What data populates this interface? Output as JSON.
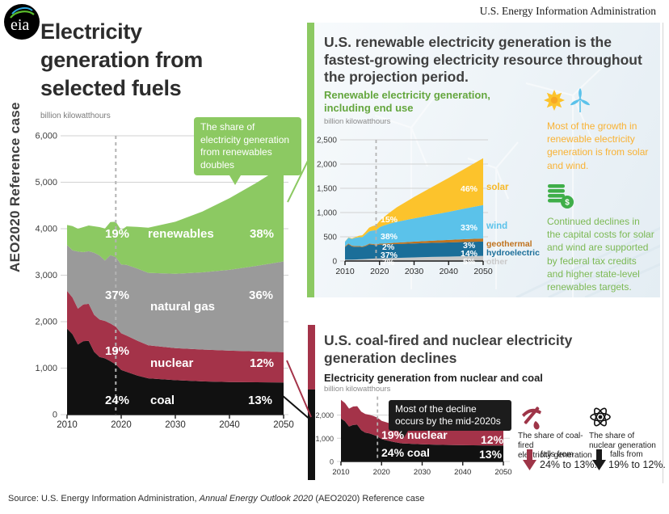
{
  "header": {
    "brand": "U.S. Energy Information Administration",
    "logo_text": "eia",
    "edition_label": "AEO2020 Reference case"
  },
  "main_chart": {
    "title": "Electricity\ngeneration from\nselected fuels",
    "units": "billion kilowatthours",
    "callout": "The share of electricity generation from renewables doubles",
    "labels": {
      "renewables_start": "19%",
      "renewables": "renewables",
      "renewables_end": "38%",
      "gas_start": "37%",
      "gas": "natural gas",
      "gas_end": "36%",
      "nuclear_start": "19%",
      "nuclear": "nuclear",
      "nuclear_end": "12%",
      "coal_start": "24%",
      "coal": "coal",
      "coal_end": "13%"
    }
  },
  "renewables_panel": {
    "title": "U.S. renewable electricity generation is the fastest-growing electricity resource throughout the projection period.",
    "chart_title": "Renewable electricity generation,\nincluding end use",
    "units": "billion kilowatthours",
    "start_labels": {
      "solar": "15%",
      "wind": "38%",
      "geothermal": "2%",
      "hydroelectric": "37%",
      "other": "7%"
    },
    "end_labels": {
      "solar": "46%",
      "wind": "33%",
      "geothermal": "3%",
      "hydroelectric": "14%",
      "other": "5%"
    },
    "legend": {
      "solar": "solar",
      "wind": "wind",
      "geothermal": "geothermal",
      "hydroelectric": "hydroelectric",
      "other": "other"
    },
    "note_growth": "Most of the growth in renewable electricity generation is from solar and wind.",
    "note_costs": "Continued declines in the capital costs for solar and wind are supported by federal tax credits and higher state-level renewables targets."
  },
  "coal_nuclear_panel": {
    "title": "U.S. coal-fired and nuclear electricity generation declines",
    "chart_title": "Electricity generation from nuclear and coal",
    "units": "billion kilowatthours",
    "callout": "Most of the decline occurs by the mid-2020s",
    "labels": {
      "nuclear_start": "19% nuclear",
      "nuclear_end": "12%",
      "coal_start": "24% coal",
      "coal_end": "13%"
    },
    "coal_note": {
      "lines": "The share of coal-fired\nelectricity generation",
      "falls": "falls from",
      "range": "24% to 13%."
    },
    "nuclear_note": {
      "lines": "The share of\nnuclear generation",
      "falls": "falls from",
      "range": "19% to 12%."
    }
  },
  "footer": {
    "prefix": "Source: U.S. Energy Information Administration, ",
    "italic": "Annual Energy Outlook 2020",
    "suffix": " (AEO2020) Reference case"
  },
  "colors": {
    "renewables_green": "#8cc962",
    "natural_gas_gray": "#9a9a9a",
    "nuclear_red": "#a43349",
    "coal_black": "#111111",
    "solar_yellow": "#fcc32c",
    "wind_blue": "#5bc2ea",
    "geothermal_orange": "#c0731f",
    "hydro_blue": "#1b6e99",
    "other_gray": "#c9c9c9"
  },
  "chart_data": [
    {
      "id": "main",
      "type": "area",
      "title": "Electricity generation from selected fuels",
      "ylabel": "billion kilowatthours",
      "x_range": [
        2010,
        2050
      ],
      "ylim": [
        0,
        6000
      ],
      "y_grid": [
        0,
        1000,
        2000,
        3000,
        4000,
        5000,
        6000
      ],
      "y_tick_labels": [
        "0",
        "1,000",
        "2,000",
        "3,000",
        "4,000",
        "5,000",
        "6,000"
      ],
      "x_ticks": [
        2010,
        2020,
        2030,
        2040,
        2050
      ],
      "x_tick_labels": [
        "2010",
        "2020",
        "2030",
        "2040",
        "2050"
      ],
      "dashed_year": 2019,
      "x": [
        2010,
        2011,
        2012,
        2013,
        2014,
        2015,
        2016,
        2017,
        2018,
        2019,
        2020,
        2021,
        2023,
        2025,
        2030,
        2035,
        2040,
        2045,
        2050
      ],
      "series": [
        {
          "name": "coal",
          "color": "#111111",
          "values": [
            1850,
            1730,
            1510,
            1580,
            1585,
            1350,
            1240,
            1210,
            1150,
            1080,
            960,
            920,
            840,
            780,
            740,
            715,
            700,
            695,
            690
          ]
        },
        {
          "name": "nuclear",
          "color": "#a43349",
          "values": [
            810,
            790,
            770,
            790,
            800,
            798,
            805,
            805,
            810,
            810,
            790,
            780,
            750,
            710,
            690,
            685,
            675,
            665,
            655
          ]
        },
        {
          "name": "natural gas",
          "color": "#9a9a9a",
          "values": [
            990,
            1015,
            1230,
            1125,
            1130,
            1335,
            1380,
            1300,
            1470,
            1500,
            1480,
            1520,
            1550,
            1560,
            1600,
            1660,
            1740,
            1840,
            1950
          ]
        },
        {
          "name": "renewables",
          "color": "#8cc962",
          "values": [
            430,
            520,
            490,
            540,
            555,
            570,
            610,
            690,
            715,
            760,
            740,
            830,
            900,
            970,
            1120,
            1310,
            1540,
            1790,
            2060
          ]
        }
      ]
    },
    {
      "id": "renewables",
      "type": "area",
      "title": "Renewable electricity generation, including end use",
      "ylabel": "billion kilowatthours",
      "x_range": [
        2010,
        2050
      ],
      "ylim": [
        0,
        2500
      ],
      "y_grid": [
        0,
        500,
        1000,
        1500,
        2000,
        2500
      ],
      "y_tick_labels": [
        "0",
        "500",
        "1,000",
        "1,500",
        "2,000",
        "2,500"
      ],
      "x_ticks": [
        2010,
        2020,
        2030,
        2040,
        2050
      ],
      "x_tick_labels": [
        "2010",
        "2020",
        "2030",
        "2040",
        "2050"
      ],
      "dashed_year": 2019,
      "x": [
        2010,
        2011,
        2012,
        2013,
        2014,
        2015,
        2016,
        2017,
        2018,
        2019,
        2020,
        2021,
        2023,
        2025,
        2030,
        2035,
        2040,
        2045,
        2050
      ],
      "series": [
        {
          "name": "other",
          "color": "#c9c9c9",
          "values": [
            30,
            30,
            30,
            32,
            35,
            38,
            42,
            46,
            50,
            52,
            55,
            58,
            62,
            65,
            75,
            85,
            92,
            100,
            106
          ]
        },
        {
          "name": "hydroelectric",
          "color": "#1b6e99",
          "values": [
            258,
            315,
            270,
            262,
            258,
            248,
            265,
            295,
            288,
            272,
            285,
            280,
            283,
            285,
            288,
            290,
            292,
            294,
            296
          ]
        },
        {
          "name": "geothermal",
          "color": "#c0731f",
          "values": [
            15,
            16,
            16,
            16,
            17,
            16,
            17,
            18,
            17,
            16,
            18,
            20,
            24,
            28,
            37,
            44,
            51,
            57,
            63
          ]
        },
        {
          "name": "wind",
          "color": "#5bc2ea",
          "values": [
            95,
            120,
            140,
            168,
            182,
            190,
            227,
            254,
            273,
            295,
            338,
            368,
            405,
            430,
            480,
            530,
            580,
            635,
            690
          ]
        },
        {
          "name": "solar",
          "color": "#fcc32c",
          "values": [
            4,
            6,
            10,
            16,
            28,
            39,
            54,
            77,
            93,
            107,
            131,
            164,
            230,
            300,
            440,
            570,
            700,
            830,
            965
          ]
        }
      ]
    },
    {
      "id": "coal_nuclear",
      "type": "area",
      "title": "Electricity generation from nuclear and coal",
      "ylabel": "billion kilowatthours",
      "x_range": [
        2010,
        2050
      ],
      "ylim": [
        0,
        2800
      ],
      "y_grid": [
        0,
        1000,
        2000
      ],
      "y_tick_labels": [
        "0",
        "1,000",
        "2,000"
      ],
      "x_ticks": [
        2010,
        2020,
        2030,
        2040,
        2050
      ],
      "x_tick_labels": [
        "2010",
        "2020",
        "2030",
        "2040",
        "2050"
      ],
      "dashed_year": 2019,
      "x": [
        2010,
        2011,
        2012,
        2013,
        2014,
        2015,
        2016,
        2017,
        2018,
        2019,
        2020,
        2021,
        2023,
        2025,
        2030,
        2035,
        2040,
        2045,
        2050
      ],
      "series": [
        {
          "name": "coal",
          "color": "#111111",
          "values": [
            1850,
            1730,
            1510,
            1580,
            1585,
            1350,
            1240,
            1210,
            1150,
            1080,
            960,
            920,
            840,
            780,
            740,
            715,
            700,
            695,
            690
          ]
        },
        {
          "name": "nuclear",
          "color": "#a43349",
          "values": [
            810,
            790,
            770,
            790,
            800,
            798,
            805,
            805,
            810,
            810,
            790,
            780,
            750,
            710,
            690,
            685,
            675,
            665,
            655
          ]
        }
      ]
    }
  ]
}
